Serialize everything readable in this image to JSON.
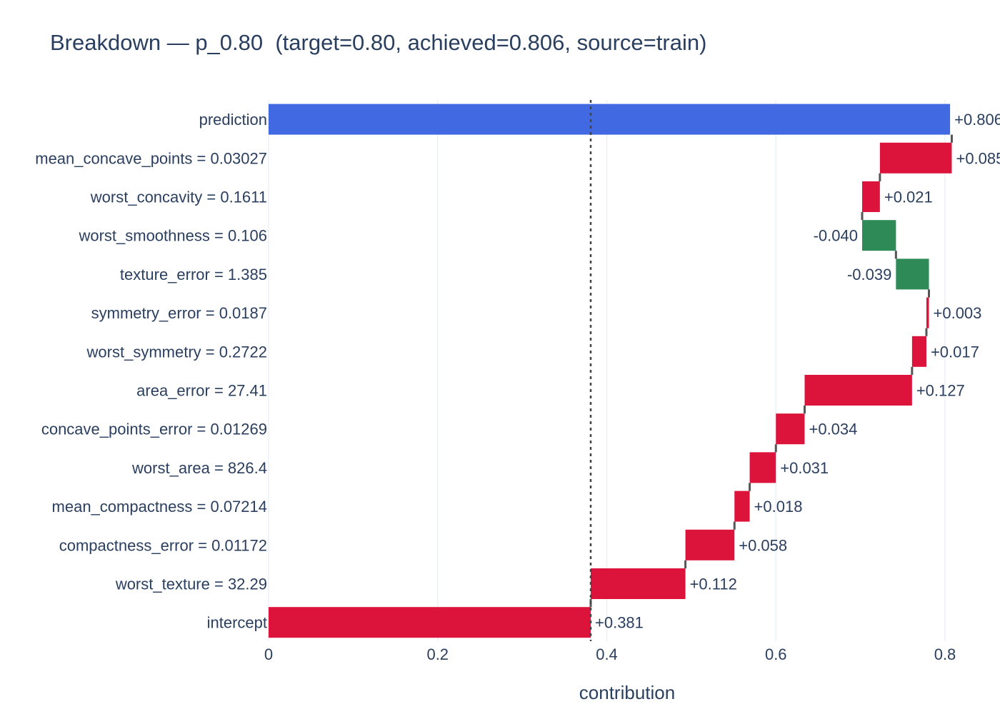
{
  "chart_data": {
    "type": "bar",
    "subtype": "waterfall",
    "orientation": "horizontal",
    "title": "Breakdown — p_0.80  (target=0.80, achieved=0.806, source=train)",
    "xlabel": "contribution",
    "ylabel": "",
    "xlim": [
      0,
      0.845
    ],
    "x_ticks": [
      "0",
      "0.2",
      "0.4",
      "0.6",
      "0.8"
    ],
    "x_tick_values": [
      0,
      0.2,
      0.4,
      0.6,
      0.8
    ],
    "grid": true,
    "reference_line_x": 0.381,
    "colors": {
      "positive": "#dc143c",
      "negative": "#2e8b57",
      "total": "#4169e1",
      "connector": "#555555"
    },
    "steps": [
      {
        "label": "prediction",
        "kind": "total",
        "value": 0.806,
        "text": "+0.806"
      },
      {
        "label": "mean_concave_points = 0.03027",
        "kind": "delta",
        "value": 0.085,
        "text": "+0.085"
      },
      {
        "label": "worst_concavity = 0.1611",
        "kind": "delta",
        "value": 0.021,
        "text": "+0.021"
      },
      {
        "label": "worst_smoothness = 0.106",
        "kind": "delta",
        "value": -0.04,
        "text": "-0.040"
      },
      {
        "label": "texture_error = 1.385",
        "kind": "delta",
        "value": -0.039,
        "text": "-0.039"
      },
      {
        "label": "symmetry_error = 0.0187",
        "kind": "delta",
        "value": 0.003,
        "text": "+0.003"
      },
      {
        "label": "worst_symmetry = 0.2722",
        "kind": "delta",
        "value": 0.017,
        "text": "+0.017"
      },
      {
        "label": "area_error = 27.41",
        "kind": "delta",
        "value": 0.127,
        "text": "+0.127"
      },
      {
        "label": "concave_points_error = 0.01269",
        "kind": "delta",
        "value": 0.034,
        "text": "+0.034"
      },
      {
        "label": "worst_area = 826.4",
        "kind": "delta",
        "value": 0.031,
        "text": "+0.031"
      },
      {
        "label": "mean_compactness = 0.07214",
        "kind": "delta",
        "value": 0.018,
        "text": "+0.018"
      },
      {
        "label": "compactness_error = 0.01172",
        "kind": "delta",
        "value": 0.058,
        "text": "+0.058"
      },
      {
        "label": "worst_texture = 32.29",
        "kind": "delta",
        "value": 0.112,
        "text": "+0.112"
      },
      {
        "label": "intercept",
        "kind": "delta",
        "value": 0.381,
        "text": "+0.381"
      }
    ]
  }
}
